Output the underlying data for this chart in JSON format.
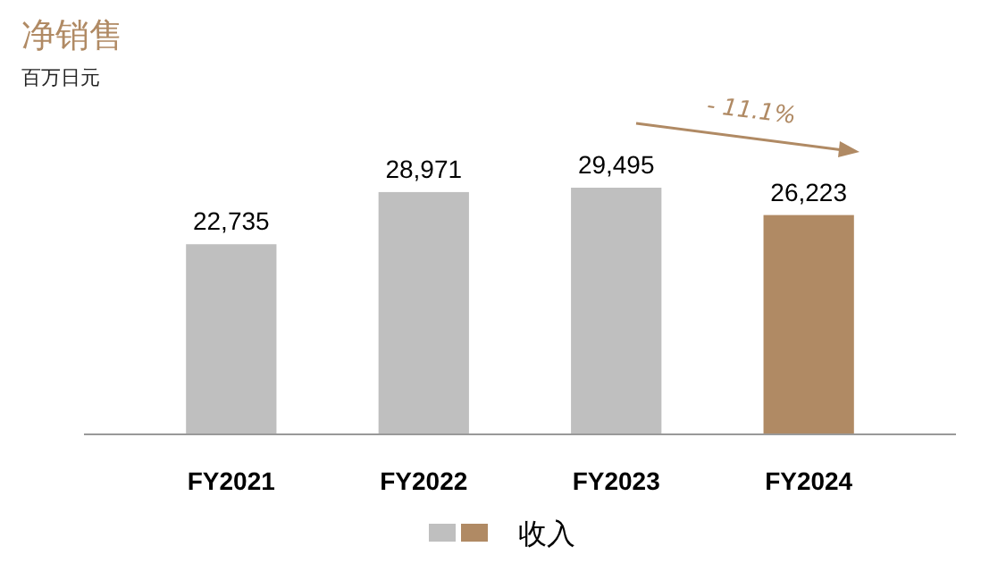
{
  "chart_data": {
    "type": "bar",
    "title": "净销售",
    "subtitle": "百万日元",
    "categories": [
      "FY2021",
      "FY2022",
      "FY2023",
      "FY2024"
    ],
    "series": [
      {
        "name": "收入",
        "values": [
          22735,
          28971,
          29495,
          26223
        ],
        "colors": [
          "#bfbfbf",
          "#bfbfbf",
          "#bfbfbf",
          "#b08a64"
        ],
        "value_labels": [
          "22,735",
          "28,971",
          "29,495",
          "26,223"
        ]
      }
    ],
    "legend": "bottom",
    "annotations": [
      "- 11.1%"
    ]
  }
}
